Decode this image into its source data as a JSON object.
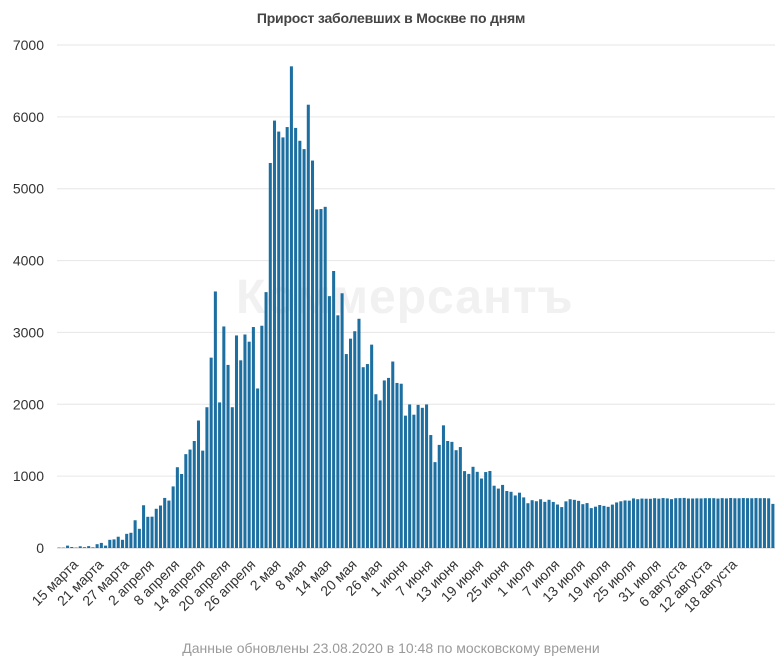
{
  "chart_data": {
    "type": "bar",
    "title": "Прирост заболевших в Москве по дням",
    "xlabel": "",
    "ylabel": "",
    "ylim": [
      0,
      7000
    ],
    "yticks": [
      0,
      1000,
      2000,
      3000,
      4000,
      5000,
      6000,
      7000
    ],
    "grid": true,
    "color": "#1c6fa0",
    "watermark": "Коммерсантъ",
    "start_date": "2020-03-13",
    "tick_labels": [
      "15 марта",
      "21 марта",
      "27 марта",
      "2 апреля",
      "8 апреля",
      "14 апреля",
      "20 апреля",
      "26 апреля",
      "2 мая",
      "8 мая",
      "14 мая",
      "20 мая",
      "26 мая",
      "1 июня",
      "7 июня",
      "13 июня",
      "19 июня",
      "25 июня",
      "1 июля",
      "7 июля",
      "13 июля",
      "19 июля",
      "25 июля",
      "31 июля",
      "6 августа",
      "12 августа",
      "18 августа"
    ],
    "values": [
      6,
      5,
      33,
      14,
      6,
      24,
      11,
      26,
      9,
      53,
      71,
      33,
      114,
      120,
      157,
      114,
      197,
      212,
      386,
      267,
      595,
      434,
      436,
      546,
      591,
      697,
      660,
      857,
      1124,
      1030,
      1306,
      1370,
      1489,
      1774,
      1355,
      1959,
      2649,
      3570,
      2026,
      3083,
      2548,
      1959,
      2958,
      2612,
      2971,
      2871,
      3075,
      2220,
      3093,
      3561,
      5358,
      5948,
      5795,
      5714,
      5858,
      6703,
      5846,
      5667,
      5551,
      6169,
      5392,
      4712,
      4717,
      4748,
      3505,
      3855,
      3238,
      3545,
      2699,
      2913,
      3017,
      3190,
      2516,
      2560,
      2830,
      2140,
      2054,
      2332,
      2367,
      2595,
      2297,
      2286,
      1842,
      1998,
      1855,
      1992,
      1951,
      1998,
      1572,
      1195,
      1435,
      1707,
      1489,
      1477,
      1361,
      1405,
      1070,
      1031,
      1130,
      1060,
      967,
      1057,
      1072,
      867,
      827,
      878,
      793,
      782,
      731,
      770,
      704,
      623,
      665,
      651,
      678,
      642,
      671,
      641,
      605,
      569,
      649,
      679,
      670,
      656,
      610,
      625,
      555,
      575,
      598,
      586,
      573,
      604,
      634,
      650,
      662,
      659,
      690,
      679,
      688,
      686,
      685,
      693,
      687,
      695,
      690,
      680,
      693,
      694,
      697,
      689,
      689,
      691,
      690,
      693,
      693,
      693,
      688,
      694,
      690,
      696,
      692,
      692,
      695,
      693,
      692,
      695,
      693,
      694,
      691,
      614
    ]
  },
  "footer": {
    "note": "Данные обновлены 23.08.2020 в 10:48 по московскому времени"
  }
}
